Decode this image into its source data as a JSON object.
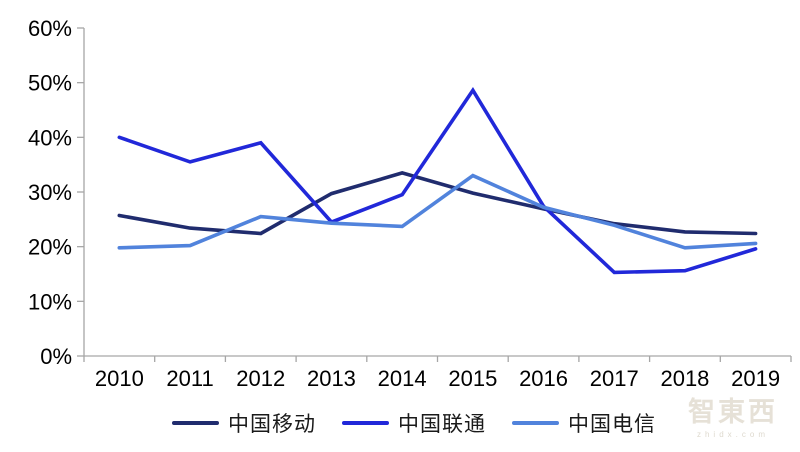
{
  "chart_data": {
    "type": "line",
    "title": "",
    "categories": [
      "2010",
      "2011",
      "2012",
      "2013",
      "2014",
      "2015",
      "2016",
      "2017",
      "2018",
      "2019"
    ],
    "series": [
      {
        "name": "中国移动",
        "color": "#202c6e",
        "values": [
          25.7,
          23.4,
          22.4,
          29.7,
          33.5,
          29.8,
          26.9,
          24.2,
          22.7,
          22.4
        ]
      },
      {
        "name": "中国联通",
        "color": "#2128d9",
        "values": [
          40.0,
          35.5,
          39.0,
          24.5,
          29.5,
          48.6,
          27.4,
          15.3,
          15.6,
          19.6
        ]
      },
      {
        "name": "中国电信",
        "color": "#5183dc",
        "values": [
          19.8,
          20.2,
          25.5,
          24.3,
          23.7,
          33.0,
          27.2,
          23.9,
          19.8,
          20.6
        ]
      }
    ],
    "xlabel": "",
    "ylabel": "",
    "ylim": [
      0,
      60
    ],
    "ytick_step": 10,
    "ytick_labels": [
      "0%",
      "10%",
      "20%",
      "30%",
      "40%",
      "50%",
      "60%"
    ],
    "grid": false,
    "legend_position": "bottom"
  },
  "style": {
    "axis_color": "#a6a6a6",
    "tick_color": "#a6a6a6",
    "label_color": "#000000",
    "background": "#ffffff"
  },
  "watermark": {
    "logo": "智東西",
    "caption": "zhidx.com"
  }
}
